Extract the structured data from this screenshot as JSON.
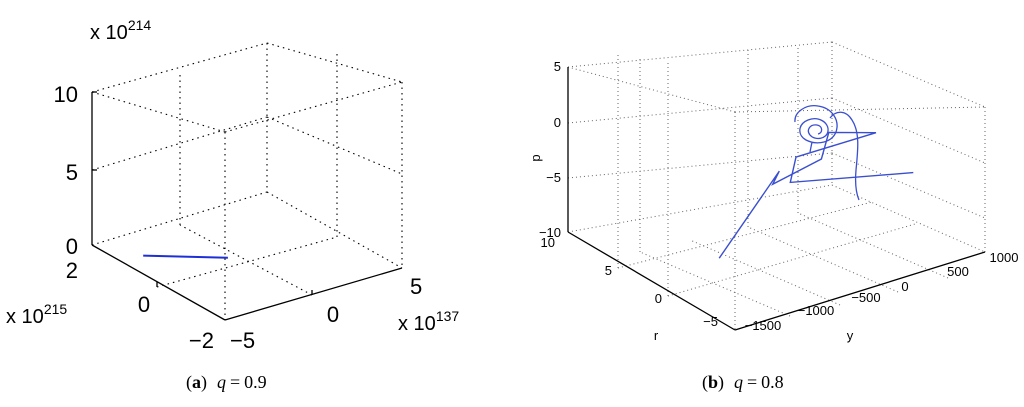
{
  "chart_data": [
    {
      "type": "line",
      "projection": "3d",
      "caption": {
        "label": "a",
        "var": "q",
        "eq": "=",
        "value": "0.9"
      },
      "x_multiplier": "x 10^215",
      "y_multiplier": "x 10^137",
      "z_multiplier": "x 10^214",
      "x_ticks": [
        "2",
        "0",
        "−2"
      ],
      "y_ticks": [
        "−5",
        "0",
        "5"
      ],
      "z_ticks": [
        "0",
        "5",
        "10"
      ],
      "xlim": [
        -2,
        2
      ],
      "ylim": [
        -5,
        5
      ],
      "zlim": [
        0,
        10
      ],
      "grid": true,
      "series": [
        {
          "color": "#1f2fd6",
          "x": [
            1.1,
            0.15
          ],
          "y": [
            -3.8,
            -0.8
          ],
          "z": [
            0,
            0
          ]
        }
      ]
    },
    {
      "type": "line",
      "projection": "3d",
      "caption": {
        "label": "b",
        "var": "q",
        "eq": "=",
        "value": "0.8"
      },
      "xlabel": "r",
      "ylabel": "y",
      "zlabel": "p",
      "x_ticks": [
        "10",
        "5",
        "0",
        "−5"
      ],
      "y_ticks": [
        "−1500",
        "−1000",
        "−500",
        "0",
        "500",
        "1000"
      ],
      "z_ticks": [
        "−10",
        "−5",
        "0",
        "5"
      ],
      "xlim": [
        -5,
        10
      ],
      "ylim": [
        -1500,
        1000
      ],
      "zlim": [
        -10,
        5
      ],
      "grid": true,
      "series": [
        {
          "color": "#3a4fd0",
          "x": [
            7.5,
            3.2,
            5.3,
            3.3,
            4.5,
            3.8,
            6.5,
            0.6,
            5.0
          ],
          "y": [
            -1380,
            -300,
            -600,
            110,
            50,
            600,
            -500,
            100,
            840
          ],
          "z": [
            -5.3,
            -3.0,
            -2.1,
            -3.0,
            0.3,
            -1.7,
            0.8,
            -6.7,
            -5.3
          ]
        }
      ]
    }
  ]
}
